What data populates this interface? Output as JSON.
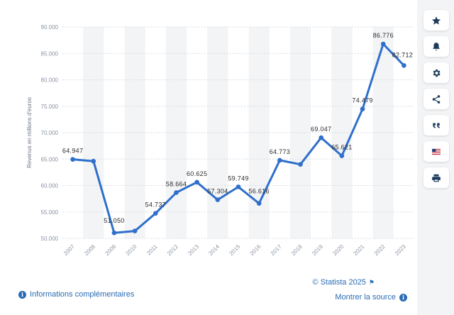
{
  "chart_data": {
    "type": "line",
    "title": "",
    "xlabel": "",
    "ylabel": "Revenus en millions d'euros",
    "ylim": [
      50,
      90
    ],
    "yticks": [
      "50.000",
      "55.000",
      "60.000",
      "65.000",
      "70.000",
      "75.000",
      "80.000",
      "85.000",
      "90.000"
    ],
    "ytick_values": [
      50,
      55,
      60,
      65,
      70,
      75,
      80,
      85,
      90
    ],
    "categories": [
      "2007",
      "2008",
      "2009",
      "2010",
      "2011",
      "2012",
      "2013",
      "2014",
      "2015",
      "2016",
      "2017",
      "2018",
      "2019",
      "2020",
      "2021",
      "2022",
      "2023"
    ],
    "values": [
      64.947,
      64.6,
      51.05,
      51.4,
      54.737,
      58.664,
      60.625,
      57.304,
      59.749,
      56.616,
      64.773,
      64.0,
      69.047,
      65.621,
      74.479,
      86.776,
      82.712
    ],
    "data_labels": [
      "64.947",
      "",
      "51.050",
      "",
      "54.737",
      "58.664",
      "60.625",
      "57.304",
      "59.749",
      "56.616",
      "64.773",
      "",
      "69.047",
      "65.621",
      "74.479",
      "86.776",
      "82.712"
    ],
    "series_color": "#2f6fcb",
    "grid": true
  },
  "toolbar": {
    "buttons": [
      {
        "name": "favorite-button",
        "icon": "star-icon"
      },
      {
        "name": "notification-button",
        "icon": "bell-icon"
      },
      {
        "name": "settings-button",
        "icon": "gear-icon"
      },
      {
        "name": "share-button",
        "icon": "share-icon"
      },
      {
        "name": "cite-button",
        "icon": "quote-icon"
      },
      {
        "name": "language-button",
        "icon": "flag-icon"
      },
      {
        "name": "print-button",
        "icon": "printer-icon"
      }
    ]
  },
  "footer": {
    "copyright": "© Statista 2025",
    "info_label": "Informations complémentaires",
    "source_label": "Montrer la source"
  },
  "colors": {
    "accent": "#2a6bb3",
    "line": "#2f6fcb"
  }
}
